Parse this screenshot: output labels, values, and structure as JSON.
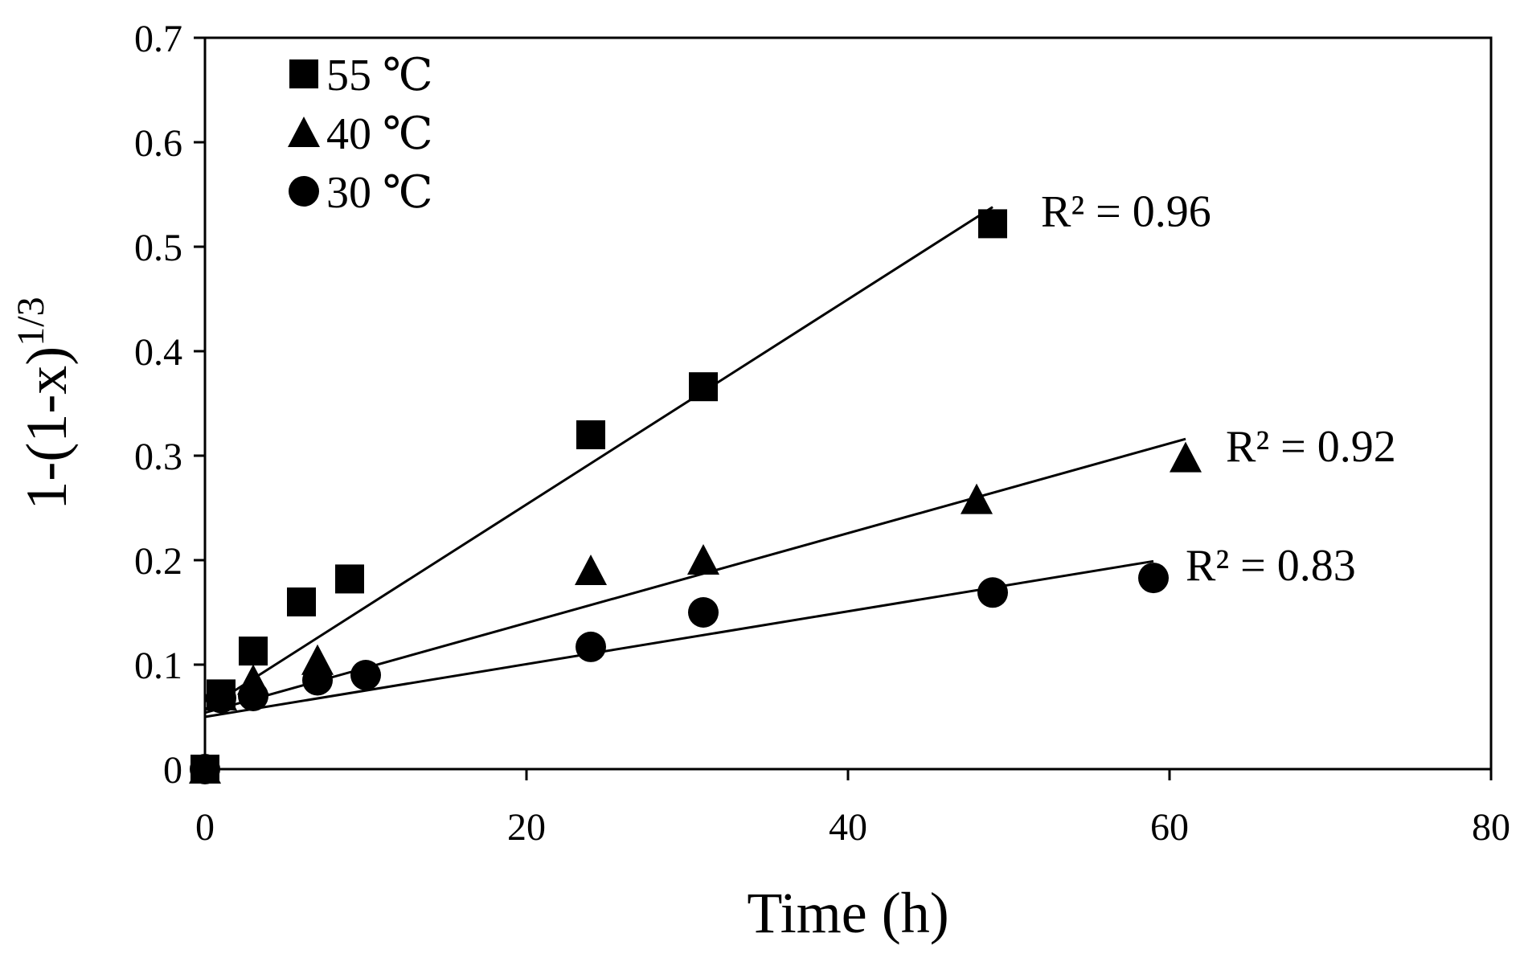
{
  "chart_data": {
    "type": "scatter",
    "title": "",
    "xlabel": "Time (h)",
    "ylabel": {
      "base": "1-(1-x)",
      "superscript": "1/3"
    },
    "xlim": [
      0,
      80
    ],
    "ylim": [
      0,
      0.7
    ],
    "x_ticks": [
      0,
      20,
      40,
      60,
      80
    ],
    "y_ticks": [
      0,
      0.1,
      0.2,
      0.3,
      0.4,
      0.5,
      0.6,
      0.7
    ],
    "x_tick_labels": [
      "0",
      "20",
      "40",
      "60",
      "80"
    ],
    "y_tick_labels": [
      "0",
      "0.1",
      "0.2",
      "0.3",
      "0.4",
      "0.5",
      "0.6",
      "0.7"
    ],
    "grid": false,
    "legend_position": "top-left",
    "series": [
      {
        "name": "55 ℃",
        "marker": "square",
        "x": [
          0,
          1,
          3,
          6,
          9,
          24,
          31,
          49
        ],
        "y": [
          0,
          0.072,
          0.113,
          0.16,
          0.182,
          0.32,
          0.366,
          0.522
        ],
        "trendline": {
          "x": [
            0,
            49
          ],
          "y": [
            0.057,
            0.538
          ]
        },
        "r2_label": "R² = 0.96",
        "r2_anchor": {
          "x": 52,
          "y": 0.535
        }
      },
      {
        "name": "40 ℃",
        "marker": "triangle",
        "x": [
          0,
          1,
          3,
          7,
          24,
          31,
          48,
          61
        ],
        "y": [
          0,
          0.07,
          0.085,
          0.104,
          0.19,
          0.2,
          0.258,
          0.298
        ],
        "trendline": {
          "x": [
            0,
            61
          ],
          "y": [
            0.054,
            0.316
          ]
        },
        "r2_label": "R² = 0.92",
        "r2_anchor": {
          "x": 63.5,
          "y": 0.31
        }
      },
      {
        "name": "30 ℃",
        "marker": "circle",
        "x": [
          0,
          1,
          3,
          7,
          10,
          24,
          31,
          49,
          59
        ],
        "y": [
          0,
          0.068,
          0.07,
          0.085,
          0.09,
          0.117,
          0.15,
          0.169,
          0.183
        ],
        "trendline": {
          "x": [
            0,
            59
          ],
          "y": [
            0.05,
            0.199
          ]
        },
        "r2_label": "R² = 0.83",
        "r2_anchor": {
          "x": 61,
          "y": 0.196
        }
      }
    ]
  }
}
